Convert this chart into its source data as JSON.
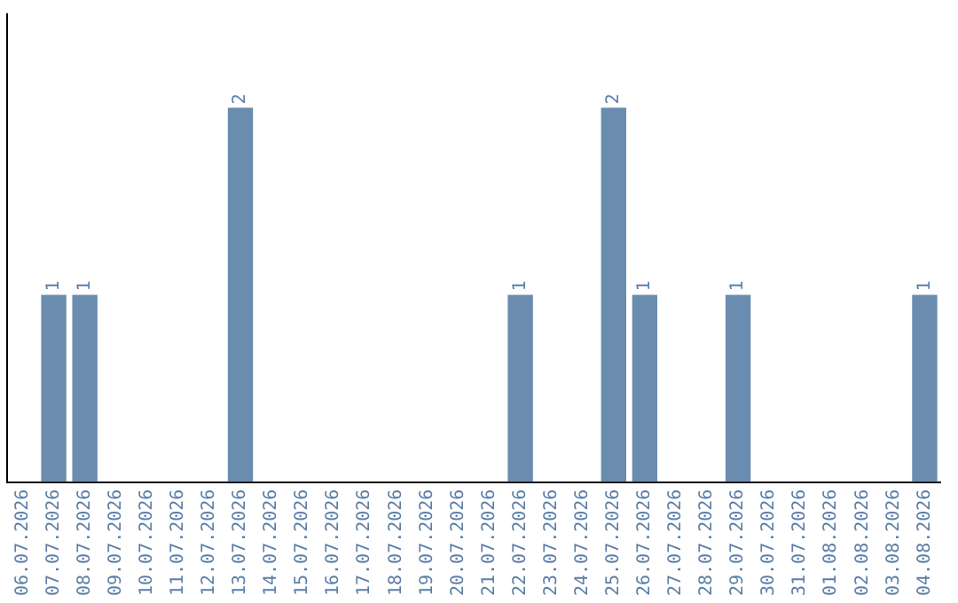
{
  "chart_data": {
    "type": "bar",
    "categories": [
      "06.07.2026",
      "07.07.2026",
      "08.07.2026",
      "09.07.2026",
      "10.07.2026",
      "11.07.2026",
      "12.07.2026",
      "13.07.2026",
      "14.07.2026",
      "15.07.2026",
      "16.07.2026",
      "17.07.2026",
      "18.07.2026",
      "19.07.2026",
      "20.07.2026",
      "21.07.2026",
      "22.07.2026",
      "23.07.2026",
      "24.07.2026",
      "25.07.2026",
      "26.07.2026",
      "27.07.2026",
      "28.07.2026",
      "29.07.2026",
      "30.07.2026",
      "31.07.2026",
      "01.08.2026",
      "02.08.2026",
      "03.08.2026",
      "04.08.2026"
    ],
    "values": [
      0,
      1,
      1,
      0,
      0,
      0,
      0,
      2,
      0,
      0,
      0,
      0,
      0,
      0,
      0,
      0,
      1,
      0,
      0,
      2,
      1,
      0,
      0,
      1,
      0,
      0,
      0,
      0,
      0,
      1
    ],
    "value_labels": [
      null,
      "1",
      "1",
      null,
      null,
      null,
      null,
      "2",
      null,
      null,
      null,
      null,
      null,
      null,
      null,
      null,
      "1",
      null,
      null,
      "2",
      "1",
      null,
      null,
      "1",
      null,
      null,
      null,
      null,
      null,
      "1"
    ],
    "color": "#6a8caf",
    "grid": false,
    "legend": false,
    "tick_labels": "x"
  }
}
